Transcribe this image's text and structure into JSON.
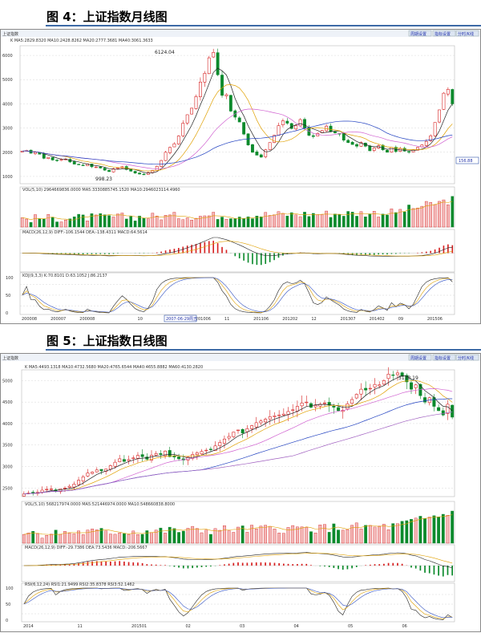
{
  "figures": [
    {
      "title": "图 4：上证指数月线图",
      "header_left": "上证指数",
      "header_mid": "K MA5:2829.8320  MA10:2428.8262  MA20:2777.3681  MA40:3061.3633",
      "header_buttons": [
        "周期设置",
        "指标设置",
        "分时/K线"
      ],
      "volume_label": "VOL(5,10)  2964669836.0000  MA5:3330885745.1520  MA10:2946023114.4960",
      "macd_label": "MACD(26,12,9)  DIFF:-106.1544  DEA:-138.4311  MACD:64.5614",
      "kdj_label": "KDJ(9,3,3)  K:70.8101  D:63.1052  J:86.2137",
      "side_tag": "156.88",
      "date_box": "2007-06-29周五",
      "annotations": {
        "high": "6124.04",
        "low": "998.23"
      }
    },
    {
      "title": "图 5：上证指数日线图",
      "header_left": "上证指数",
      "header_mid": "K MA5:4493.1318  MA10:4732.5680  MA20:4765.6544  MA40:4655.8882  MA60:4130.2820",
      "header_buttons": [
        "周期设置",
        "指标设置",
        "分时/K线"
      ],
      "volume_label": "VOL(5,10)  568217974.0000  MA5:521446974.0000  MA10:548660838.8000",
      "macd_label": "MACD(26,12,9)  DIFF:-29.7386  DEA:73.5436  MACD:-206.5667",
      "rsi_label": "RSI(6,12,24)  RSI1:21.9499  RSI2:35.8378  RSI3:52.1462",
      "annotations": {
        "high": "5178.19"
      }
    }
  ],
  "chart_data": [
    {
      "type": "candlestick",
      "title": "图 4：上证指数月线图",
      "y_ticks": [
        1000,
        2000,
        3000,
        4000,
        5000,
        6000
      ],
      "ylim": [
        700,
        6400
      ],
      "x_ticks": [
        "200008",
        "200007",
        "200008",
        "2007-06-29周五",
        "10",
        "200908",
        "201006",
        "11",
        "201106",
        "201202",
        "12",
        "201307",
        "201402",
        "09",
        "201506"
      ],
      "close": [
        2050,
        2070,
        1960,
        2000,
        1920,
        1750,
        1790,
        1680,
        1660,
        1700,
        1720,
        1600,
        1510,
        1480,
        1450,
        1520,
        1400,
        1390,
        1350,
        1260,
        1200,
        1320,
        1360,
        1400,
        1290,
        1220,
        1140,
        1100,
        1080,
        1160,
        1250,
        1420,
        1660,
        2000,
        2200,
        2350,
        2670,
        3200,
        3550,
        3820,
        4300,
        4900,
        5260,
        5900,
        6124,
        5200,
        4350,
        4380,
        3700,
        3450,
        3250,
        2750,
        2300,
        2000,
        1880,
        1800,
        2100,
        2400,
        2700,
        3100,
        3300,
        3200,
        2980,
        3100,
        3350,
        3000,
        2700,
        2650,
        2780,
        2900,
        3080,
        2850,
        2800,
        2750,
        2500,
        2400,
        2320,
        2250,
        2400,
        2250,
        2060,
        2180,
        2270,
        2100,
        2000,
        2200,
        2030,
        2150,
        2050,
        2000,
        2100,
        2200,
        2300,
        2450,
        2680,
        3230,
        3750,
        4440,
        4600,
        4000
      ]
    },
    {
      "type": "candlestick",
      "title": "图 5：上证指数日线图",
      "y_ticks": [
        2500,
        3000,
        3500,
        4000,
        4500,
        5000
      ],
      "ylim": [
        2300,
        5250
      ],
      "x_ticks": [
        "2014",
        "11",
        "201501",
        "02",
        "03",
        "04",
        "05",
        "06"
      ],
      "close": [
        2360,
        2380,
        2390,
        2400,
        2450,
        2470,
        2480,
        2430,
        2480,
        2500,
        2540,
        2590,
        2680,
        2760,
        2850,
        2870,
        2920,
        2900,
        2940,
        3020,
        3100,
        3180,
        3120,
        3160,
        3200,
        3260,
        3230,
        3170,
        3260,
        3300,
        3280,
        3360,
        3230,
        3220,
        3180,
        3150,
        3220,
        3280,
        3320,
        3350,
        3380,
        3400,
        3480,
        3560,
        3640,
        3700,
        3800,
        3850,
        3780,
        3880,
        3950,
        4020,
        4060,
        4100,
        4160,
        4180,
        4200,
        4220,
        4280,
        4320,
        4400,
        4480,
        4500,
        4380,
        4420,
        4450,
        4480,
        4430,
        4380,
        4300,
        4310,
        4460,
        4560,
        4680,
        4800,
        4780,
        4820,
        4910,
        4900,
        5000,
        5150,
        5120,
        5178,
        5100,
        4970,
        4800,
        4900,
        4650,
        4500,
        4600,
        4400,
        4300,
        4200,
        4450,
        4150
      ]
    }
  ]
}
